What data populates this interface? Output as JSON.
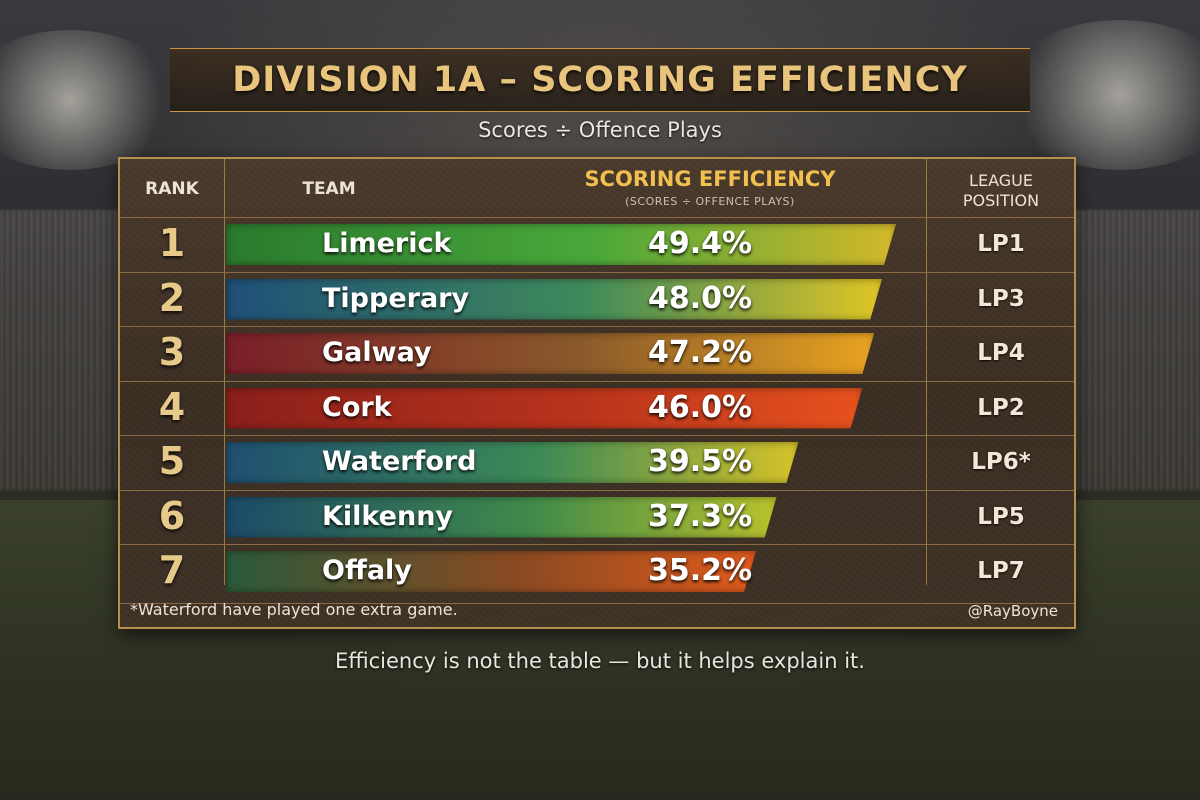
{
  "title": "DIVISION 1A – SCORING EFFICIENCY",
  "subtitle": "Scores ÷ Offence Plays",
  "headers": {
    "rank": "RANK",
    "team": "TEAM",
    "efficiency": "SCORING EFFICIENCY",
    "efficiency_sub": "(SCORES ÷ OFFENCE PLAYS)",
    "league_line1": "LEAGUE",
    "league_line2": "POSITION"
  },
  "footnote": "*Waterford have played one extra game.",
  "credit": "@RayBoyne",
  "caption": "Efficiency is not the table — but it helps explain it.",
  "colors": {
    "accent": "#e9c47c",
    "limerick": [
      "#2a7a2e",
      "#4aa83a",
      "#d4b82a"
    ],
    "tipperary": [
      "#1f4f78",
      "#3f8a5a",
      "#e0c526"
    ],
    "galway": [
      "#7a1e28",
      "#8a5a2a",
      "#e8a321"
    ],
    "cork": [
      "#8a1f1a",
      "#b8331c",
      "#e6521d"
    ],
    "waterford": [
      "#1f4f72",
      "#3d8a56",
      "#d6c229"
    ],
    "kilkenny": [
      "#1c4a68",
      "#3f8a4a",
      "#b8c22b"
    ],
    "offaly": [
      "#2a5a3a",
      "#8a4a22",
      "#e05a1c"
    ]
  },
  "chart_data": {
    "type": "bar",
    "title": "DIVISION 1A – SCORING EFFICIENCY",
    "subtitle": "Scores ÷ Offence Plays",
    "xlabel": "",
    "ylabel": "SCORING EFFICIENCY (SCORES ÷ OFFENCE PLAYS)",
    "orientation": "horizontal",
    "ylim": [
      0,
      50
    ],
    "rows": [
      {
        "rank": "1",
        "team": "Limerick",
        "value": 49.4,
        "label": "49.4%",
        "league_position": "LP1",
        "color_key": "limerick"
      },
      {
        "rank": "2",
        "team": "Tipperary",
        "value": 48.0,
        "label": "48.0%",
        "league_position": "LP3",
        "color_key": "tipperary"
      },
      {
        "rank": "3",
        "team": "Galway",
        "value": 47.2,
        "label": "47.2%",
        "league_position": "LP4",
        "color_key": "galway"
      },
      {
        "rank": "4",
        "team": "Cork",
        "value": 46.0,
        "label": "46.0%",
        "league_position": "LP2",
        "color_key": "cork"
      },
      {
        "rank": "5",
        "team": "Waterford",
        "value": 39.5,
        "label": "39.5%",
        "league_position": "LP6*",
        "color_key": "waterford"
      },
      {
        "rank": "6",
        "team": "Kilkenny",
        "value": 37.3,
        "label": "37.3%",
        "league_position": "LP5",
        "color_key": "kilkenny"
      },
      {
        "rank": "7",
        "team": "Offaly",
        "value": 35.2,
        "label": "35.2%",
        "league_position": "LP7",
        "color_key": "offaly"
      }
    ]
  }
}
